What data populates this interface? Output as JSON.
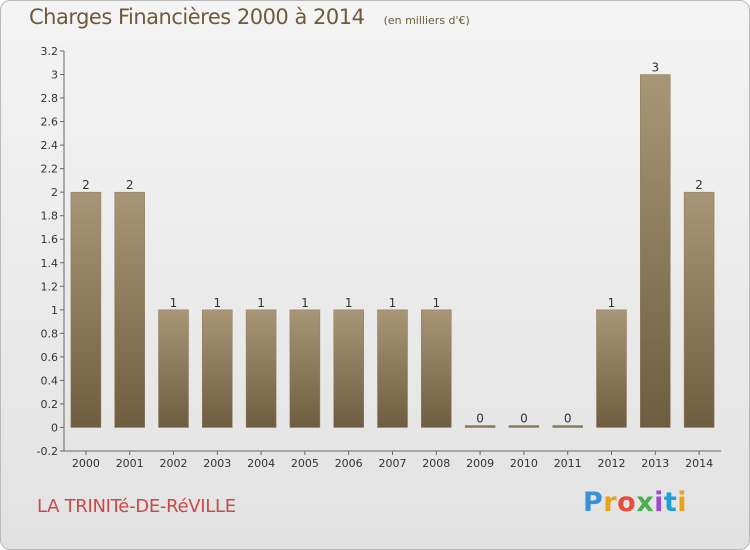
{
  "header": {
    "title": "Charges Financières 2000 à 2014",
    "subtitle": "(en milliers d'€)"
  },
  "footer": {
    "commune": "LA TRINITé-DE-RéVILLE",
    "logo": {
      "letters": [
        "P",
        "r",
        "o",
        "x",
        "i",
        "t",
        "i"
      ],
      "colors": [
        "#3a8fd6",
        "#e8a317",
        "#e84c3d",
        "#4caf50",
        "#9c4dcc",
        "#1f9fd8",
        "#e8a317"
      ]
    }
  },
  "colors": {
    "bar_light": "#a89677",
    "bar_dark": "#6f5d40",
    "axis": "#666666",
    "grid": "#cfcfcf"
  },
  "chart_data": {
    "type": "bar",
    "title": "Charges Financières 2000 à 2014",
    "subtitle": "(en milliers d'€)",
    "categories": [
      "2000",
      "2001",
      "2002",
      "2003",
      "2004",
      "2005",
      "2006",
      "2007",
      "2008",
      "2009",
      "2010",
      "2011",
      "2012",
      "2013",
      "2014"
    ],
    "values": [
      2,
      2,
      1,
      1,
      1,
      1,
      1,
      1,
      1,
      0,
      0,
      0,
      1,
      3,
      2
    ],
    "value_labels": [
      "2",
      "2",
      "1",
      "1",
      "1",
      "1",
      "1",
      "1",
      "1",
      "0",
      "0",
      "0",
      "1",
      "3",
      "2"
    ],
    "ylim": [
      -0.2,
      3.2
    ],
    "yticks": [
      -0.2,
      0,
      0.2,
      0.4,
      0.6,
      0.8,
      1,
      1.2,
      1.4,
      1.6,
      1.8,
      2,
      2.2,
      2.4,
      2.6,
      2.8,
      3,
      3.2
    ],
    "ytick_labels": [
      "-0.2",
      "0",
      "0.2",
      "0.4",
      "0.6",
      "0.8",
      "1",
      "1.2",
      "1.4",
      "1.6",
      "1.8",
      "2",
      "2.2",
      "2.4",
      "2.6",
      "2.8",
      "3",
      "3.2"
    ],
    "grid": false,
    "legend": "none"
  }
}
